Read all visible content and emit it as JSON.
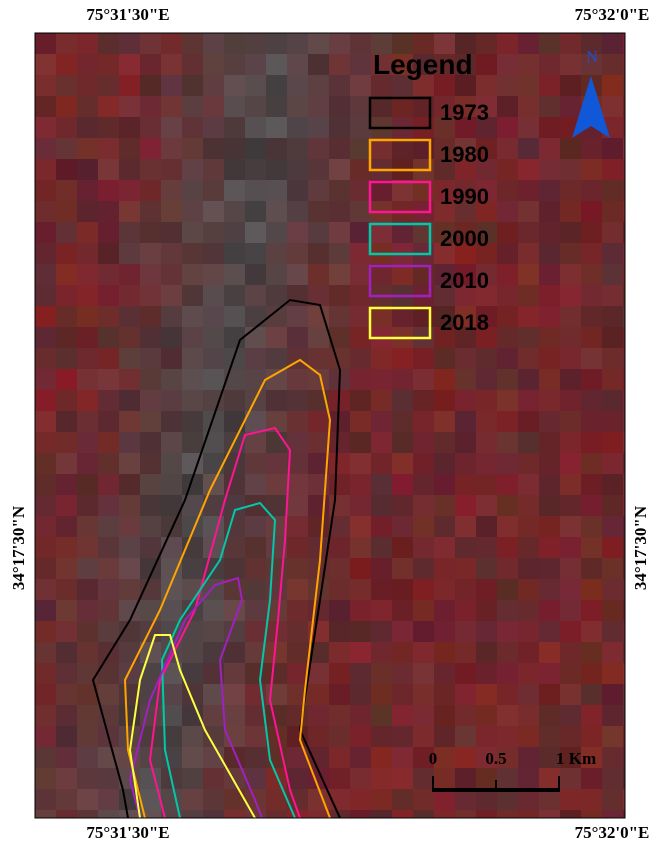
{
  "map": {
    "coordinates": {
      "top": [
        "75°31'30\"E",
        "75°32'0\"E"
      ],
      "bottom": [
        "75°31'30\"E",
        "75°32'0\"E"
      ],
      "left": "34°17'30\"N",
      "right": "34°17'30\"N"
    },
    "legend": {
      "title": "Legend",
      "items": [
        {
          "label": "1973",
          "color": "#000000"
        },
        {
          "label": "1980",
          "color": "#ffa500"
        },
        {
          "label": "1990",
          "color": "#ff1493"
        },
        {
          "label": "2000",
          "color": "#00c8a8"
        },
        {
          "label": "2010",
          "color": "#a020c0"
        },
        {
          "label": "2018",
          "color": "#ffff40"
        }
      ]
    },
    "north": "N",
    "scale_bar": [
      "0",
      "0.5",
      "1 Km"
    ]
  }
}
